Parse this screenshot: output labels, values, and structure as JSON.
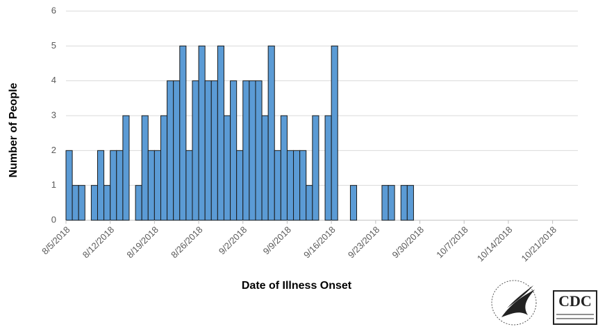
{
  "chart_data": {
    "type": "bar",
    "x_label": "Date of Illness Onset",
    "y_label": "Number of People",
    "categories": [
      "8/5/2018",
      null,
      null,
      null,
      null,
      null,
      null,
      "8/12/2018",
      null,
      null,
      null,
      null,
      null,
      null,
      "8/19/2018",
      null,
      null,
      null,
      null,
      null,
      null,
      "8/26/2018",
      null,
      null,
      null,
      null,
      null,
      null,
      "9/2/2018",
      null,
      null,
      null,
      null,
      null,
      null,
      "9/9/2018",
      null,
      null,
      null,
      null,
      null,
      null,
      "9/16/2018",
      null,
      null,
      null,
      null,
      null,
      null,
      "9/23/2018",
      null,
      null,
      null,
      null,
      null,
      null,
      "9/30/2018",
      null,
      null,
      null,
      null,
      null,
      null,
      "10/7/2018",
      null,
      null,
      null,
      null,
      null,
      null,
      "10/14/2018",
      null,
      null,
      null,
      null,
      null,
      null,
      "10/21/2018",
      null,
      null,
      null
    ],
    "values": [
      2,
      1,
      1,
      0,
      1,
      2,
      1,
      2,
      2,
      3,
      0,
      1,
      3,
      2,
      2,
      3,
      4,
      4,
      5,
      2,
      4,
      5,
      4,
      4,
      5,
      3,
      4,
      2,
      4,
      4,
      4,
      3,
      5,
      2,
      3,
      2,
      2,
      2,
      1,
      3,
      0,
      3,
      5,
      0,
      0,
      1,
      0,
      0,
      0,
      0,
      1,
      1,
      0,
      1,
      1,
      0,
      0,
      0,
      0,
      0,
      0,
      0,
      0,
      0,
      0,
      0,
      0,
      0,
      0,
      0,
      0,
      0,
      0,
      0,
      0,
      0,
      0,
      0,
      0,
      0,
      0
    ],
    "color": "#5b9bd5",
    "ylim": [
      0,
      6
    ],
    "yticks": [
      0,
      1,
      2,
      3,
      4,
      5,
      6
    ],
    "grid": true
  },
  "logo_text": "CDC"
}
